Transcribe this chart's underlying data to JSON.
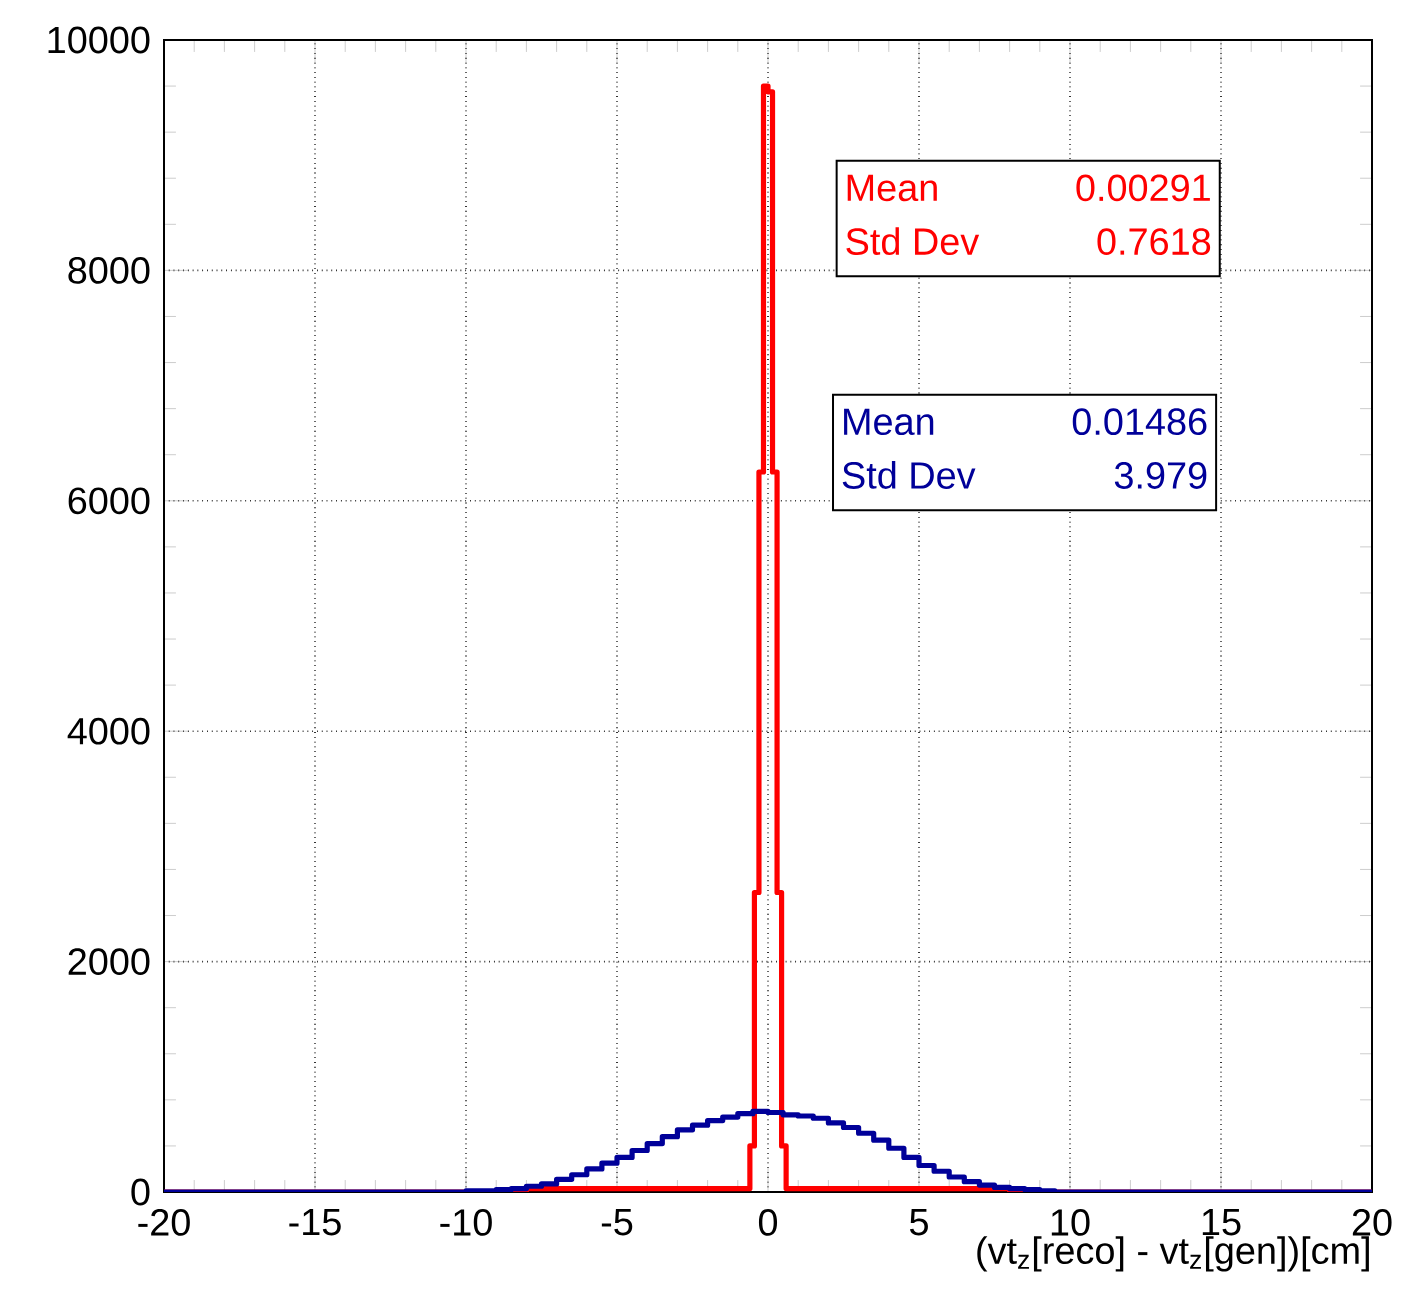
{
  "chart_data": {
    "type": "step",
    "xlabel": "(vt$_{z}$[reco] - vt$_{z}$[gen])[cm]",
    "xlim": [
      -20,
      20
    ],
    "ylim": [
      0,
      10000
    ],
    "xticks": [
      -20,
      -15,
      -10,
      -5,
      0,
      5,
      10,
      15,
      20
    ],
    "yticks": [
      0,
      2000,
      4000,
      6000,
      8000,
      10000
    ],
    "grid": true,
    "series": [
      {
        "color": "#ff0000",
        "x": [
          -20,
          -8,
          -0.6,
          -0.45,
          -0.3,
          -0.15,
          0,
          0.15,
          0.3,
          0.45,
          0.6,
          8,
          20
        ],
        "values": [
          0,
          30,
          400,
          2600,
          6250,
          9600,
          9550,
          6250,
          2600,
          400,
          30,
          0,
          0
        ]
      },
      {
        "color": "#000099",
        "x": [
          -20,
          -10,
          -9.5,
          -9,
          -8.5,
          -8,
          -7.5,
          -7,
          -6.5,
          -6,
          -5.5,
          -5,
          -4.5,
          -4,
          -3.5,
          -3,
          -2.5,
          -2,
          -1.5,
          -1,
          -0.5,
          0,
          0.5,
          1,
          1.5,
          2,
          2.5,
          3,
          3.5,
          4,
          4.5,
          5,
          5.5,
          6,
          6.5,
          7,
          7.5,
          8,
          8.5,
          9,
          9.5,
          10,
          20
        ],
        "values": [
          0,
          10,
          10,
          20,
          30,
          50,
          70,
          110,
          150,
          200,
          250,
          300,
          360,
          420,
          480,
          540,
          580,
          620,
          650,
          680,
          700,
          690,
          670,
          660,
          640,
          600,
          560,
          510,
          450,
          380,
          300,
          230,
          180,
          130,
          90,
          60,
          40,
          30,
          20,
          10,
          0,
          0,
          0
        ]
      }
    ],
    "annotations": [
      "Mean",
      "0.00291",
      "Std Dev",
      "0.7618",
      "Mean",
      "0.01486",
      "Std Dev",
      "3.979"
    ]
  }
}
